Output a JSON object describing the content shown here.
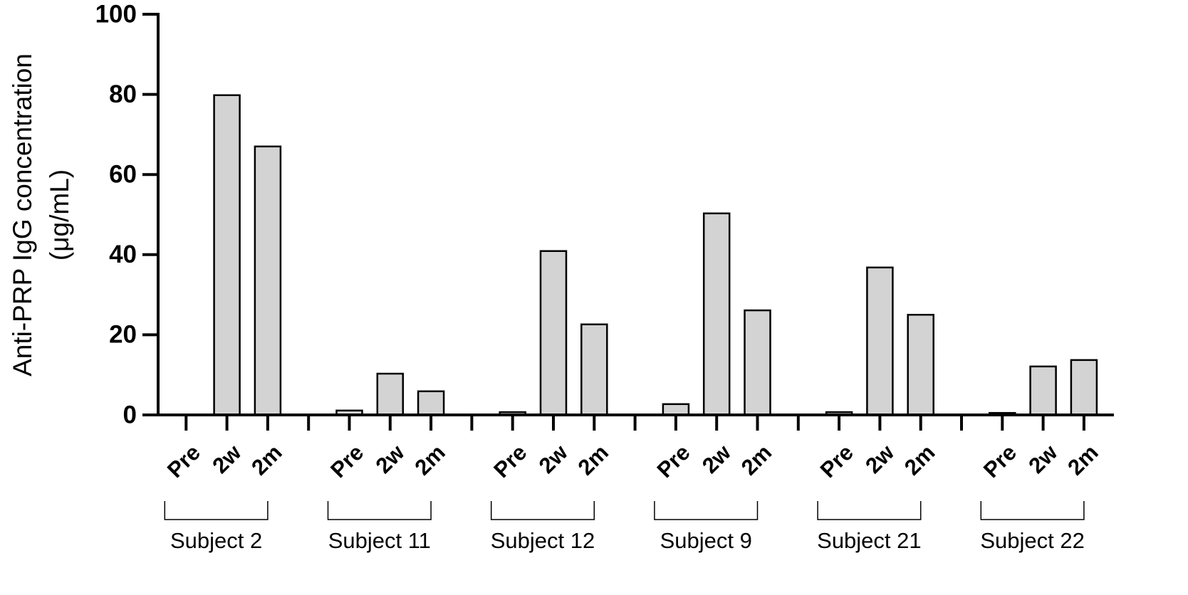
{
  "chart_data": {
    "type": "bar",
    "ylabel": [
      "Anti-PRP IgG concentration",
      "(μg/mL)"
    ],
    "ylim": [
      0,
      100
    ],
    "yticks": [
      0,
      20,
      40,
      60,
      80,
      100
    ],
    "color": "#d3d3d3",
    "groups": [
      {
        "name": "Subject 2",
        "categories": [
          "Pre",
          "2w",
          "2m"
        ],
        "values": [
          0,
          79.8,
          67.0
        ]
      },
      {
        "name": "Subject 11",
        "categories": [
          "Pre",
          "2w",
          "2m"
        ],
        "values": [
          1.1,
          10.3,
          5.9
        ]
      },
      {
        "name": "Subject 12",
        "categories": [
          "Pre",
          "2w",
          "2m"
        ],
        "values": [
          0.7,
          40.9,
          22.6
        ]
      },
      {
        "name": "Subject 9",
        "categories": [
          "Pre",
          "2w",
          "2m"
        ],
        "values": [
          2.7,
          50.3,
          26.1
        ]
      },
      {
        "name": "Subject 21",
        "categories": [
          "Pre",
          "2w",
          "2m"
        ],
        "values": [
          0.7,
          36.8,
          25.0
        ]
      },
      {
        "name": "Subject 22",
        "categories": [
          "Pre",
          "2w",
          "2m"
        ],
        "values": [
          0.5,
          12.1,
          13.7
        ]
      }
    ]
  }
}
